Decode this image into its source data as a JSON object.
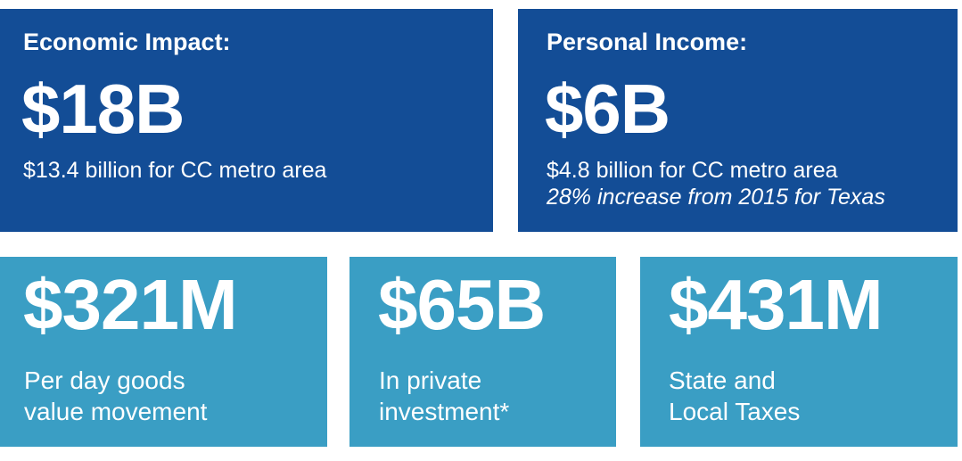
{
  "economic_impact": {
    "label": "Economic Impact:",
    "value": "$18B",
    "detail": "$13.4 billion for CC metro area"
  },
  "personal_income": {
    "label": "Personal Income:",
    "value": "$6B",
    "detail": "$4.8 billion for CC metro area",
    "note": "28% increase from 2015 for Texas"
  },
  "goods_movement": {
    "value": "$321M",
    "desc_line1": "Per day goods",
    "desc_line2": "value movement"
  },
  "private_investment": {
    "value": "$65B",
    "desc_line1": "In private",
    "desc_line2": "investment*"
  },
  "taxes": {
    "value": "$431M",
    "desc_line1": "State and",
    "desc_line2": "Local Taxes"
  },
  "colors": {
    "dark_tile": "#134d96",
    "light_tile": "#3a9ec4",
    "text": "#ffffff"
  }
}
